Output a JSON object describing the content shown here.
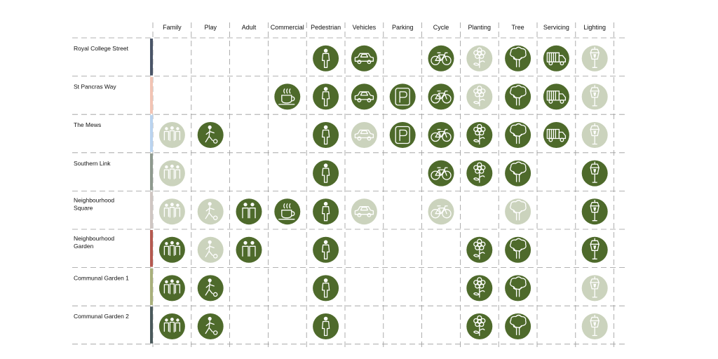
{
  "colors": {
    "strong": "#4e6a2b",
    "light": "#cbd3bd",
    "icon": "#ffffff",
    "grid": "#9a9a9a"
  },
  "legend_levels": [
    "strong",
    "light",
    "none"
  ],
  "columns": [
    {
      "key": "family",
      "label": "Family",
      "icon": "family-icon"
    },
    {
      "key": "play",
      "label": "Play",
      "icon": "play-icon"
    },
    {
      "key": "adult",
      "label": "Adult",
      "icon": "adult-icon"
    },
    {
      "key": "commercial",
      "label": "Commercial",
      "icon": "coffee-icon"
    },
    {
      "key": "pedestrian",
      "label": "Pedestrian",
      "icon": "pedestrian-icon"
    },
    {
      "key": "vehicles",
      "label": "Vehicles",
      "icon": "car-icon"
    },
    {
      "key": "parking",
      "label": "Parking",
      "icon": "parking-icon"
    },
    {
      "key": "cycle",
      "label": "Cycle",
      "icon": "bicycle-icon"
    },
    {
      "key": "planting",
      "label": "Planting",
      "icon": "flower-icon"
    },
    {
      "key": "tree",
      "label": "Tree",
      "icon": "tree-icon"
    },
    {
      "key": "servicing",
      "label": "Servicing",
      "icon": "truck-icon"
    },
    {
      "key": "lighting",
      "label": "Lighting",
      "icon": "lamp-icon"
    }
  ],
  "rows": [
    {
      "name": [
        "Royal College Street"
      ],
      "bar_color": "#4a5568",
      "cells": [
        "none",
        "none",
        "none",
        "none",
        "strong",
        "strong",
        "none",
        "strong",
        "light",
        "strong",
        "strong",
        "light"
      ]
    },
    {
      "name": [
        "St Pancras Way"
      ],
      "bar_color": "#f2c4b4",
      "cells": [
        "none",
        "none",
        "none",
        "strong",
        "strong",
        "strong",
        "strong",
        "strong",
        "light",
        "strong",
        "strong",
        "light"
      ]
    },
    {
      "name": [
        "The Mews"
      ],
      "bar_color": "#b9d3ef",
      "cells": [
        "light",
        "strong",
        "none",
        "none",
        "strong",
        "light",
        "strong",
        "strong",
        "strong",
        "strong",
        "strong",
        "light"
      ]
    },
    {
      "name": [
        "Southern Link"
      ],
      "bar_color": "#8f9a8f",
      "cells": [
        "light",
        "none",
        "none",
        "none",
        "strong",
        "none",
        "none",
        "strong",
        "strong",
        "strong",
        "none",
        "strong"
      ]
    },
    {
      "name": [
        "Neighbourhood",
        "Square"
      ],
      "bar_color": "#cfc6c2",
      "cells": [
        "light",
        "light",
        "strong",
        "strong",
        "strong",
        "light",
        "none",
        "light",
        "none",
        "light",
        "none",
        "strong"
      ]
    },
    {
      "name": [
        "Neighbourhood",
        "Garden"
      ],
      "bar_color": "#b55a50",
      "cells": [
        "strong",
        "light",
        "strong",
        "none",
        "strong",
        "none",
        "none",
        "none",
        "strong",
        "strong",
        "none",
        "strong"
      ]
    },
    {
      "name": [
        "Communal Garden 1"
      ],
      "bar_color": "#a9b07c",
      "cells": [
        "strong",
        "strong",
        "none",
        "none",
        "strong",
        "none",
        "none",
        "none",
        "strong",
        "strong",
        "none",
        "light"
      ]
    },
    {
      "name": [
        "Communal Garden 2"
      ],
      "bar_color": "#4b5a5c",
      "cells": [
        "strong",
        "strong",
        "none",
        "none",
        "strong",
        "none",
        "none",
        "none",
        "strong",
        "strong",
        "none",
        "light"
      ]
    }
  ]
}
